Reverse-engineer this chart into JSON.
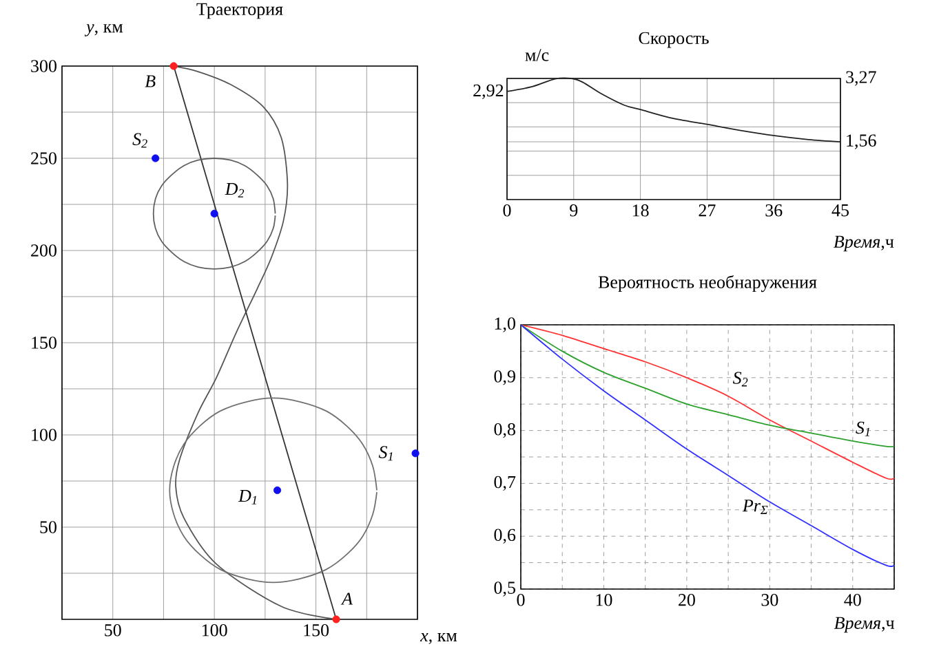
{
  "chart_data": [
    {
      "type": "line",
      "title": "Траектория",
      "xlabel": "*x*, км",
      "ylabel": "*y*, км",
      "xlim": [
        25,
        200
      ],
      "ylim": [
        0,
        300
      ],
      "xticks": [
        {
          "value": 25,
          "label": null
        },
        50,
        {
          "value": 75,
          "label": null
        },
        100,
        {
          "value": 125,
          "label": null
        },
        150,
        {
          "value": 175,
          "label": null
        },
        {
          "value": 200,
          "label": null
        }
      ],
      "yticks": [
        {
          "value": 25,
          "label": null
        },
        50,
        {
          "value": 75,
          "label": null
        },
        100,
        {
          "value": 125,
          "label": null
        },
        150,
        {
          "value": 175,
          "label": null
        },
        200,
        {
          "value": 225,
          "label": null
        },
        250,
        {
          "value": 275,
          "label": null
        },
        300
      ],
      "grid": true,
      "series": [
        {
          "type": "line",
          "color": "#555555",
          "x": [
            160,
            133,
            101,
            85,
            81,
            83,
            92,
            101,
            111,
            121,
            128,
            134,
            136,
            133,
            124,
            108,
            92,
            80
          ],
          "values": [
            0,
            7,
            30,
            55,
            72,
            87,
            112,
            131,
            156,
            179,
            196,
            216,
            236,
            261,
            278,
            290,
            297,
            300
          ]
        },
        {
          "type": "line",
          "color": "#333333",
          "x": [
            160,
            80
          ],
          "values": [
            0,
            300
          ]
        },
        {
          "type": "line",
          "color": "#606060",
          "x": [
            130,
            129,
            126,
            121,
            115,
            108,
            100,
            92,
            85,
            79,
            74,
            71,
            70,
            71,
            74,
            79,
            85,
            92,
            100,
            108,
            115,
            121,
            126,
            129,
            130
          ],
          "values": [
            220,
            228,
            235,
            241,
            246,
            249,
            250,
            249,
            246,
            241,
            235,
            228,
            220,
            212,
            205,
            199,
            194,
            191,
            190,
            191,
            194,
            199,
            205,
            212,
            219
          ]
        },
        {
          "type": "line",
          "color": "#707070",
          "x": [
            180,
            178,
            173,
            165,
            155,
            142,
            129,
            116,
            103,
            93,
            85,
            80,
            78,
            80,
            85,
            93,
            103,
            116,
            129,
            142,
            155,
            165,
            173,
            178,
            180
          ],
          "values": [
            70,
            83,
            95,
            105,
            113,
            118,
            120,
            118,
            113,
            105,
            95,
            83,
            70,
            57,
            45,
            35,
            27,
            22,
            20,
            22,
            27,
            35,
            45,
            57,
            69
          ]
        },
        {
          "type": "scatter",
          "marker": "circle",
          "x": [
            160,
            80,
            71,
            100,
            131,
            199
          ],
          "values": [
            0,
            300,
            250,
            220,
            70,
            90
          ],
          "colors": [
            "#ff2020",
            "#ff2020",
            "#1010ee",
            "#1010ee",
            "#1010ee",
            "#1010ee"
          ]
        }
      ],
      "annotations": [
        {
          "text": "A",
          "x": 160,
          "y": 0
        },
        {
          "text": "B",
          "x": 80,
          "y": 300
        },
        {
          "text": "S$_{2}$",
          "x": 71,
          "y": 250
        },
        {
          "text": "D$_{2}$",
          "x": 100,
          "y": 220
        },
        {
          "text": "D$_{1}$",
          "x": 131,
          "y": 70
        },
        {
          "text": "S$_{1}$",
          "x": 199,
          "y": 90
        }
      ]
    },
    {
      "type": "line",
      "title": "Скорость",
      "xlabel": "*Время*,ч",
      "ylabel": "м/с",
      "xlim": [
        0,
        45
      ],
      "xticks": [
        0,
        9,
        18,
        27,
        36,
        45
      ],
      "y2lim": [
        0,
        3.27
      ],
      "y2ticks": [
        {
          "value": 0.654,
          "label": null
        },
        {
          "value": 1.308,
          "label": null
        },
        {
          "value": 1.56,
          "label": "1,56"
        },
        {
          "value": 1.962,
          "label": null
        },
        {
          "value": 2.616,
          "label": null
        },
        {
          "value": 3.27,
          "label": "3,27"
        }
      ],
      "grid": true,
      "series": [
        {
          "type": "line",
          "axis": "y2",
          "color": "#222222",
          "x": [
            0,
            3.4,
            6.5,
            8.7,
            10.2,
            12.7,
            15.8,
            18,
            22,
            27,
            31.4,
            36.3,
            40.7,
            45
          ],
          "values": [
            2.92,
            3.05,
            3.26,
            3.27,
            3.17,
            2.86,
            2.55,
            2.43,
            2.21,
            2.03,
            1.87,
            1.72,
            1.62,
            1.56
          ]
        }
      ],
      "annotations": [
        "2,92"
      ]
    },
    {
      "type": "line",
      "title": "Вероятность необнаружения",
      "xlabel": "*Время*,ч",
      "xlim": [
        0,
        45
      ],
      "xticks": [
        0,
        {
          "value": 5,
          "label": null
        },
        10,
        {
          "value": 15,
          "label": null
        },
        20,
        {
          "value": 25,
          "label": null
        },
        30,
        {
          "value": 35,
          "label": null
        },
        40,
        {
          "value": 45,
          "label": null
        }
      ],
      "ylim": [
        0.5,
        1.0
      ],
      "yticks": [
        {
          "value": 0.5,
          "label": "0,5"
        },
        {
          "value": 0.55,
          "label": null
        },
        {
          "value": 0.6,
          "label": "0,6"
        },
        {
          "value": 0.65,
          "label": null
        },
        {
          "value": 0.7,
          "label": "0,7"
        },
        {
          "value": 0.75,
          "label": null
        },
        {
          "value": 0.8,
          "label": "0,8"
        },
        {
          "value": 0.85,
          "label": null
        },
        {
          "value": 0.9,
          "label": "0,9"
        },
        {
          "value": 0.95,
          "label": null
        },
        {
          "value": 1.0,
          "label": "1,0"
        }
      ],
      "grid": true,
      "series": [
        {
          "type": "line",
          "color": "#ff3030",
          "x": [
            0,
            5,
            10,
            15,
            20,
            25,
            30,
            35,
            40,
            44,
            45
          ],
          "values": [
            1.0,
            0.98,
            0.955,
            0.93,
            0.9,
            0.865,
            0.82,
            0.78,
            0.74,
            0.71,
            0.71
          ]
        },
        {
          "type": "line",
          "color": "#2ca02c",
          "x": [
            0,
            5,
            10,
            15,
            20,
            25,
            30,
            35,
            40,
            44,
            45
          ],
          "values": [
            1.0,
            0.95,
            0.91,
            0.88,
            0.85,
            0.83,
            0.81,
            0.795,
            0.78,
            0.77,
            0.77
          ]
        },
        {
          "type": "line",
          "color": "#3030ff",
          "x": [
            0,
            5,
            10,
            15,
            20,
            25,
            30,
            35,
            40,
            44,
            45
          ],
          "values": [
            1.0,
            0.935,
            0.875,
            0.82,
            0.765,
            0.715,
            0.665,
            0.62,
            0.575,
            0.545,
            0.545
          ]
        }
      ],
      "annotations": [
        {
          "text": "S$_{2}$",
          "x": 26.5,
          "y": 0.853
        },
        {
          "text": "S$_{1}$",
          "x": 41.3,
          "y": 0.777
        },
        {
          "text": "Pr$_{Σ}$",
          "x": 27.3,
          "y": 0.692
        }
      ]
    }
  ]
}
